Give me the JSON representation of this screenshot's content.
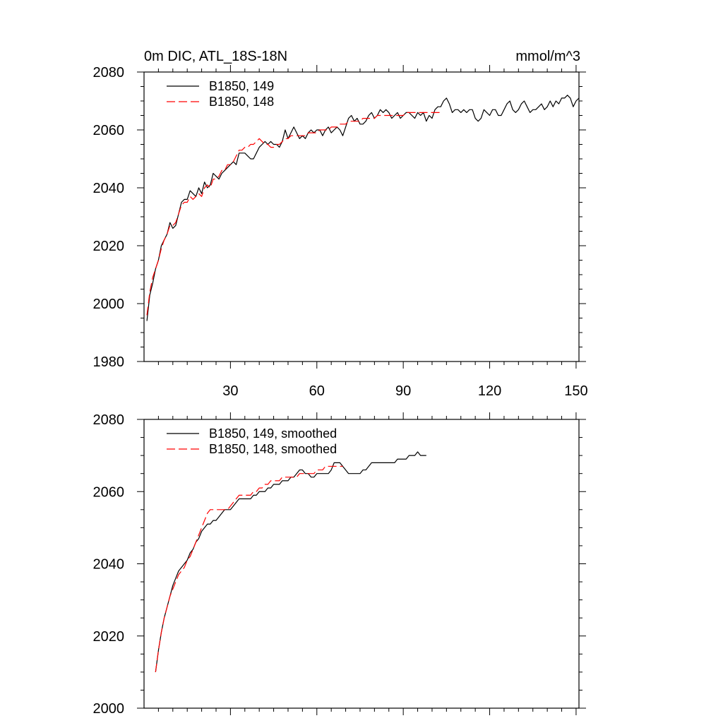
{
  "figure": {
    "title_left": "0m DIC, ATL_18S-18N",
    "title_right": "mmol/m^3"
  },
  "chart_data": [
    {
      "type": "line",
      "xlim": [
        0,
        151
      ],
      "ylim": [
        1980,
        2080
      ],
      "x_ticks": [
        30,
        60,
        90,
        120,
        150
      ],
      "x_tick_labels": [
        "30",
        "60",
        "90",
        "120",
        "150"
      ],
      "y_ticks": [
        1980,
        2000,
        2020,
        2040,
        2060,
        2080
      ],
      "y_tick_labels": [
        "1980",
        "2000",
        "2020",
        "2040",
        "2060",
        "2080"
      ],
      "legend_position": "top-left",
      "series": [
        {
          "name": "B1850, 149",
          "color": "#000000",
          "dash": "solid",
          "x_start": 1,
          "values": [
            1994,
            2003,
            2007,
            2012,
            2015,
            2020,
            2022,
            2024,
            2028,
            2026,
            2027,
            2031,
            2035,
            2036,
            2036,
            2039,
            2038,
            2037,
            2040,
            2038,
            2042,
            2040,
            2041,
            2045,
            2044,
            2043,
            2045,
            2046,
            2047,
            2048,
            2049,
            2048,
            2052,
            2052,
            2052,
            2051,
            2050,
            2050,
            2052,
            2054,
            2055,
            2056,
            2055,
            2056,
            2055,
            2055,
            2054,
            2056,
            2060,
            2057,
            2059,
            2061,
            2059,
            2057,
            2058,
            2057,
            2059,
            2060,
            2059,
            2060,
            2060,
            2058,
            2060,
            2061,
            2059,
            2060,
            2061,
            2060,
            2058,
            2061,
            2064,
            2065,
            2063,
            2064,
            2062,
            2062,
            2063,
            2065,
            2066,
            2064,
            2065,
            2067,
            2066,
            2067,
            2066,
            2064,
            2065,
            2066,
            2064,
            2065,
            2066,
            2066,
            2065,
            2064,
            2066,
            2065,
            2066,
            2063,
            2065,
            2064,
            2067,
            2068,
            2068,
            2070,
            2071,
            2069,
            2066,
            2067,
            2067,
            2066,
            2067,
            2066,
            2067,
            2067,
            2064,
            2063,
            2064,
            2067,
            2066,
            2065,
            2067,
            2067,
            2065,
            2065,
            2067,
            2069,
            2070,
            2067,
            2066,
            2067,
            2069,
            2070,
            2068,
            2066,
            2067,
            2067,
            2068,
            2069,
            2067,
            2068,
            2070,
            2068,
            2070,
            2069,
            2071,
            2071,
            2072,
            2071,
            2068,
            2070,
            2071
          ]
        },
        {
          "name": "B1850, 148",
          "color": "#ff0000",
          "dash": "dashed",
          "x_start": 1,
          "values": [
            1996,
            2004,
            2009,
            2012,
            2015,
            2019,
            2022,
            2024,
            2027,
            2027,
            2028,
            2031,
            2034,
            2035,
            2035,
            2037,
            2036,
            2037,
            2038,
            2037,
            2040,
            2041,
            2040,
            2043,
            2043,
            2044,
            2046,
            2046,
            2048,
            2048,
            2049,
            2051,
            2053,
            2053,
            2054,
            2054,
            2055,
            2055,
            2056,
            2057,
            2056,
            2055,
            2055,
            2054,
            2054,
            2055,
            2055,
            2056,
            2057,
            2057,
            2058,
            2058,
            2058,
            2058,
            2058,
            2058,
            2059,
            2059,
            2059,
            2059,
            2060,
            2060,
            2060,
            2060,
            2061,
            2061,
            2061,
            2062,
            2062,
            2062,
            2063,
            2063,
            2063,
            2063,
            2063,
            2064,
            2064,
            2064,
            2064,
            2064,
            2065,
            2065,
            2065,
            2065,
            2065,
            2065,
            2065,
            2065,
            2065,
            2065,
            2066,
            2066,
            2066,
            2066,
            2066,
            2066,
            2066,
            2066,
            2066,
            2066,
            2066,
            2066,
            2066
          ]
        }
      ]
    },
    {
      "type": "line",
      "xlim": [
        0,
        151
      ],
      "ylim": [
        2000,
        2080
      ],
      "x_ticks": [
        30,
        60,
        90,
        120,
        150
      ],
      "x_tick_labels": [],
      "y_ticks": [
        2000,
        2020,
        2040,
        2060,
        2080
      ],
      "y_tick_labels": [
        "2000",
        "2020",
        "2040",
        "2060",
        "2080"
      ],
      "legend_position": "top-left",
      "series": [
        {
          "name": "B1850, 149, smoothed",
          "color": "#000000",
          "dash": "solid",
          "x_start": 4,
          "values": [
            2010,
            2016,
            2021,
            2025,
            2028,
            2031,
            2034,
            2036,
            2038,
            2039,
            2040,
            2041,
            2043,
            2044,
            2046,
            2047,
            2049,
            2050,
            2051,
            2051,
            2052,
            2052,
            2053,
            2054,
            2055,
            2055,
            2055,
            2056,
            2057,
            2058,
            2058,
            2058,
            2058,
            2058,
            2059,
            2059,
            2060,
            2060,
            2060,
            2061,
            2061,
            2062,
            2062,
            2062,
            2063,
            2063,
            2063,
            2064,
            2064,
            2065,
            2066,
            2066,
            2065,
            2065,
            2064,
            2064,
            2065,
            2065,
            2065,
            2065,
            2065,
            2066,
            2068,
            2068,
            2068,
            2067,
            2066,
            2065,
            2065,
            2065,
            2065,
            2065,
            2066,
            2066,
            2067,
            2068,
            2068,
            2068,
            2068,
            2068,
            2068,
            2068,
            2068,
            2068,
            2069,
            2069,
            2069,
            2069,
            2070,
            2070,
            2070,
            2071,
            2070,
            2070,
            2070
          ]
        },
        {
          "name": "B1850, 148, smoothed",
          "color": "#ff0000",
          "dash": "dashed",
          "x_start": 4,
          "values": [
            2010,
            2016,
            2021,
            2025,
            2028,
            2031,
            2033,
            2035,
            2037,
            2038,
            2039,
            2041,
            2042,
            2044,
            2046,
            2048,
            2050,
            2052,
            2054,
            2055,
            2055,
            2055,
            2055,
            2055,
            2055,
            2055,
            2056,
            2057,
            2058,
            2059,
            2059,
            2059,
            2059,
            2059,
            2060,
            2060,
            2061,
            2061,
            2062,
            2062,
            2063,
            2063,
            2063,
            2063,
            2064,
            2064,
            2064,
            2064,
            2064,
            2064,
            2065,
            2065,
            2065,
            2065,
            2065,
            2065,
            2066,
            2066,
            2066,
            2067,
            2067,
            2067,
            2067,
            2067,
            2067,
            2067
          ]
        }
      ]
    }
  ]
}
